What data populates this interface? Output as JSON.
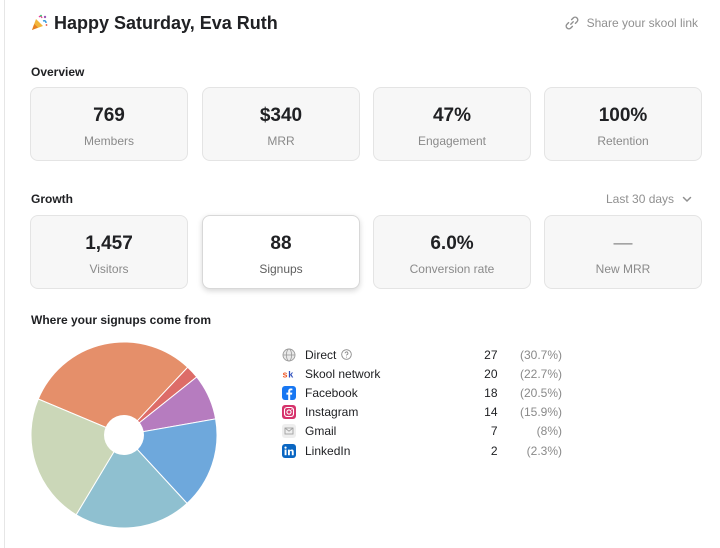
{
  "header": {
    "greeting": "Happy Saturday, Eva Ruth",
    "share_label": "Share your skool link"
  },
  "overview": {
    "title": "Overview",
    "cards": [
      {
        "value": "769",
        "label": "Members"
      },
      {
        "value": "$340",
        "label": "MRR"
      },
      {
        "value": "47%",
        "label": "Engagement"
      },
      {
        "value": "100%",
        "label": "Retention"
      }
    ]
  },
  "growth": {
    "title": "Growth",
    "range_label": "Last 30 days",
    "cards": [
      {
        "value": "1,457",
        "label": "Visitors"
      },
      {
        "value": "88",
        "label": "Signups"
      },
      {
        "value": "6.0%",
        "label": "Conversion rate"
      },
      {
        "value": "—",
        "label": "New MRR"
      }
    ]
  },
  "signups": {
    "title": "Where your signups come from",
    "sources": [
      {
        "name": "Direct",
        "count": "27",
        "pct": "(30.7%)",
        "icon": "globe-icon"
      },
      {
        "name": "Skool network",
        "count": "20",
        "pct": "(22.7%)",
        "icon": "skool-icon"
      },
      {
        "name": "Facebook",
        "count": "18",
        "pct": "(20.5%)",
        "icon": "facebook-icon"
      },
      {
        "name": "Instagram",
        "count": "14",
        "pct": "(15.9%)",
        "icon": "instagram-icon"
      },
      {
        "name": "Gmail",
        "count": "7",
        "pct": "(8%)",
        "icon": "gmail-icon"
      },
      {
        "name": "LinkedIn",
        "count": "2",
        "pct": "(2.3%)",
        "icon": "linkedin-icon"
      }
    ]
  },
  "chart_data": {
    "type": "pie",
    "categories": [
      "Direct",
      "Skool network",
      "Facebook",
      "Instagram",
      "Gmail",
      "LinkedIn"
    ],
    "values": [
      27,
      20,
      18,
      14,
      7,
      2
    ],
    "colors": [
      "#e58f6a",
      "#cbd7b8",
      "#8fc0d0",
      "#6ea8dc",
      "#b67cbf",
      "#dd6c68"
    ],
    "slice_order_clockwise_from_top": [
      "Direct",
      "LinkedIn",
      "Gmail",
      "Instagram",
      "Facebook",
      "Skool network"
    ]
  }
}
